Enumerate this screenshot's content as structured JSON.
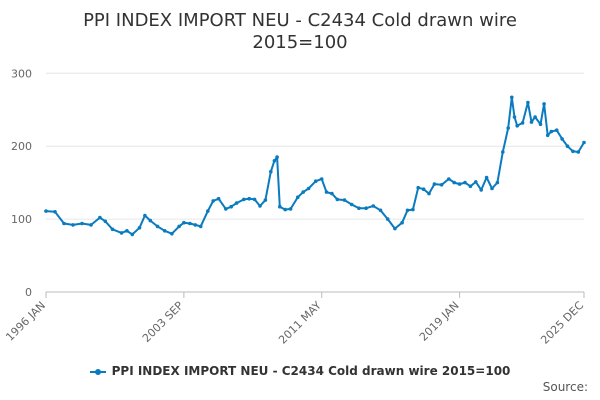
{
  "chart_data": {
    "type": "line",
    "title_lines": [
      "PPI INDEX IMPORT NEU - C2434 Cold drawn wire",
      "2015=100"
    ],
    "y_ticks": [
      "0",
      "100",
      "200",
      "300"
    ],
    "ylim": [
      0,
      310
    ],
    "x_ticks": [
      "1996 JAN",
      "2003 SEP",
      "2011 MAY",
      "2019 JAN",
      "2025 DEC"
    ],
    "x_tick_pos": [
      1996.0,
      2003.667,
      2011.333,
      2019.0,
      2025.917
    ],
    "xlim": [
      1996.0,
      2025.917
    ],
    "grid": true,
    "legend_position": "bottom",
    "color": "#0a7bbf",
    "series": [
      {
        "name": "PPI INDEX IMPORT NEU - C2434 Cold drawn wire 2015=100",
        "x": [
          1996.0,
          1996.5,
          1997.0,
          1997.5,
          1998.0,
          1998.5,
          1999.0,
          1999.3,
          1999.7,
          2000.2,
          2000.5,
          2000.8,
          2001.2,
          2001.5,
          2001.8,
          2002.2,
          2002.6,
          2003.0,
          2003.4,
          2003.67,
          2004.0,
          2004.3,
          2004.6,
          2005.0,
          2005.3,
          2005.6,
          2006.0,
          2006.3,
          2006.6,
          2007.0,
          2007.3,
          2007.6,
          2007.9,
          2008.2,
          2008.5,
          2008.7,
          2008.85,
          2009.0,
          2009.3,
          2009.6,
          2010.0,
          2010.3,
          2010.6,
          2011.0,
          2011.33,
          2011.6,
          2011.9,
          2012.2,
          2012.6,
          2013.0,
          2013.4,
          2013.8,
          2014.2,
          2014.6,
          2015.0,
          2015.4,
          2015.8,
          2016.1,
          2016.4,
          2016.7,
          2017.0,
          2017.3,
          2017.6,
          2018.0,
          2018.4,
          2018.7,
          2019.0,
          2019.3,
          2019.6,
          2019.9,
          2020.2,
          2020.5,
          2020.8,
          2021.1,
          2021.4,
          2021.7,
          2021.9,
          2022.05,
          2022.2,
          2022.5,
          2022.8,
          2023.0,
          2023.2,
          2023.5,
          2023.7,
          2023.9,
          2024.1,
          2024.4,
          2024.7,
          2025.0,
          2025.3,
          2025.6,
          2025.917
        ],
        "values": [
          111,
          110,
          94,
          92,
          94,
          92,
          102,
          97,
          86,
          81,
          84,
          79,
          88,
          105,
          98,
          90,
          84,
          80,
          90,
          95,
          94,
          92,
          90,
          111,
          125,
          128,
          114,
          117,
          122,
          127,
          128,
          127,
          118,
          126,
          165,
          180,
          185,
          117,
          113,
          114,
          130,
          137,
          142,
          152,
          155,
          137,
          135,
          127,
          126,
          120,
          115,
          115,
          118,
          112,
          100,
          87,
          95,
          112,
          113,
          143,
          141,
          135,
          148,
          147,
          155,
          150,
          148,
          150,
          145,
          151,
          140,
          157,
          142,
          150,
          192,
          225,
          267,
          240,
          228,
          232,
          260,
          233,
          240,
          230,
          258,
          215,
          220,
          222,
          210,
          200,
          193,
          192,
          205
        ]
      }
    ]
  },
  "legend_label": "PPI INDEX IMPORT NEU - C2434 Cold drawn wire 2015=100",
  "source_label": "Source:"
}
